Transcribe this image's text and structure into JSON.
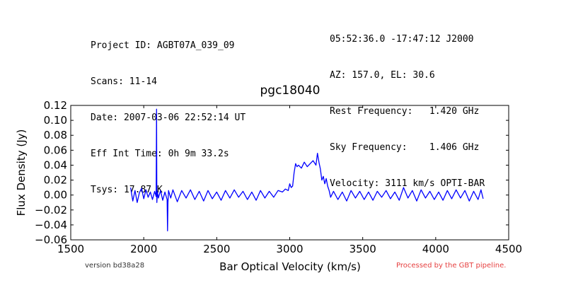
{
  "header": {
    "left": [
      "Project ID: AGBT07A_039_09",
      "Scans: 11-14",
      "Date: 2007-03-06 22:52:14 UT",
      "Eff Int Time: 0h 9m 33.2s",
      "Tsys: 17.87 K"
    ],
    "right": [
      "05:52:36.0 -17:47:12 J2000",
      "AZ: 157.0, EL: 30.6",
      "Rest Frequency:   1.420 GHz",
      "Sky Frequency:    1.406 GHz",
      "Velocity: 3111 km/s OPTI-BAR"
    ]
  },
  "footer": {
    "version": "version bd38a28",
    "pipeline": "Processed by the GBT pipeline.",
    "pipeline_color": "#e64040"
  },
  "chart_data": {
    "type": "line",
    "title": "pgc18040",
    "xlabel": "Bar Optical Velocity (km/s)",
    "ylabel": "Flux Density (Jy)",
    "xlim": [
      1500,
      4500
    ],
    "ylim": [
      -0.06,
      0.12
    ],
    "xticks": [
      1500,
      2000,
      2500,
      3000,
      3500,
      4000,
      4500
    ],
    "yticks": [
      -0.06,
      -0.04,
      -0.02,
      0.0,
      0.02,
      0.04,
      0.06,
      0.08,
      0.1,
      0.12
    ],
    "xtick_labels": [
      "1500",
      "2000",
      "2500",
      "3000",
      "3500",
      "4000",
      "4500"
    ],
    "ytick_labels": [
      "−0.06",
      "−0.04",
      "−0.02",
      "0.00",
      "0.02",
      "0.04",
      "0.06",
      "0.08",
      "0.10",
      "0.12"
    ],
    "grid": false,
    "series": [
      {
        "color": "#0000ff",
        "x": [
          1910,
          1925,
          1940,
          1955,
          1970,
          1985,
          2000,
          2015,
          2030,
          2045,
          2060,
          2075,
          2085,
          2088,
          2090,
          2093,
          2100,
          2115,
          2130,
          2145,
          2160,
          2163,
          2166,
          2170,
          2185,
          2200,
          2230,
          2260,
          2290,
          2320,
          2350,
          2380,
          2410,
          2440,
          2470,
          2500,
          2530,
          2560,
          2590,
          2620,
          2650,
          2680,
          2710,
          2740,
          2770,
          2800,
          2830,
          2860,
          2890,
          2920,
          2950,
          2970,
          2990,
          3000,
          3010,
          3020,
          3030,
          3040,
          3050,
          3060,
          3080,
          3100,
          3120,
          3140,
          3160,
          3180,
          3190,
          3200,
          3210,
          3220,
          3230,
          3240,
          3250,
          3260,
          3270,
          3280,
          3300,
          3330,
          3360,
          3390,
          3420,
          3450,
          3480,
          3510,
          3540,
          3570,
          3600,
          3630,
          3660,
          3690,
          3720,
          3750,
          3780,
          3810,
          3840,
          3870,
          3900,
          3930,
          3960,
          3990,
          4020,
          4050,
          4080,
          4110,
          4140,
          4170,
          4200,
          4230,
          4260,
          4290,
          4310,
          4325
        ],
        "y": [
          0.01,
          -0.008,
          0.006,
          -0.01,
          0.003,
          0.009,
          -0.005,
          0.007,
          -0.003,
          0.004,
          -0.006,
          0.005,
          -0.002,
          0.115,
          -0.01,
          0.005,
          -0.004,
          0.006,
          -0.007,
          0.004,
          -0.006,
          -0.048,
          -0.01,
          0.006,
          -0.004,
          0.007,
          -0.009,
          0.006,
          -0.004,
          0.007,
          -0.006,
          0.005,
          -0.008,
          0.006,
          -0.005,
          0.004,
          -0.007,
          0.006,
          -0.004,
          0.007,
          -0.003,
          0.005,
          -0.006,
          0.004,
          -0.007,
          0.006,
          -0.004,
          0.005,
          -0.003,
          0.006,
          0.004,
          0.008,
          0.006,
          0.015,
          0.01,
          0.012,
          0.03,
          0.042,
          0.038,
          0.04,
          0.036,
          0.044,
          0.038,
          0.042,
          0.046,
          0.04,
          0.056,
          0.044,
          0.035,
          0.02,
          0.025,
          0.015,
          0.022,
          0.012,
          0.006,
          -0.003,
          0.005,
          -0.006,
          0.004,
          -0.008,
          0.006,
          -0.004,
          0.005,
          -0.006,
          0.004,
          -0.007,
          0.005,
          -0.003,
          0.006,
          -0.005,
          0.004,
          -0.007,
          0.01,
          -0.004,
          0.006,
          -0.008,
          0.007,
          -0.004,
          0.005,
          -0.006,
          0.004,
          -0.007,
          0.006,
          -0.005,
          0.007,
          -0.004,
          0.006,
          -0.008,
          0.005,
          -0.006,
          0.007,
          -0.005
        ]
      }
    ]
  }
}
